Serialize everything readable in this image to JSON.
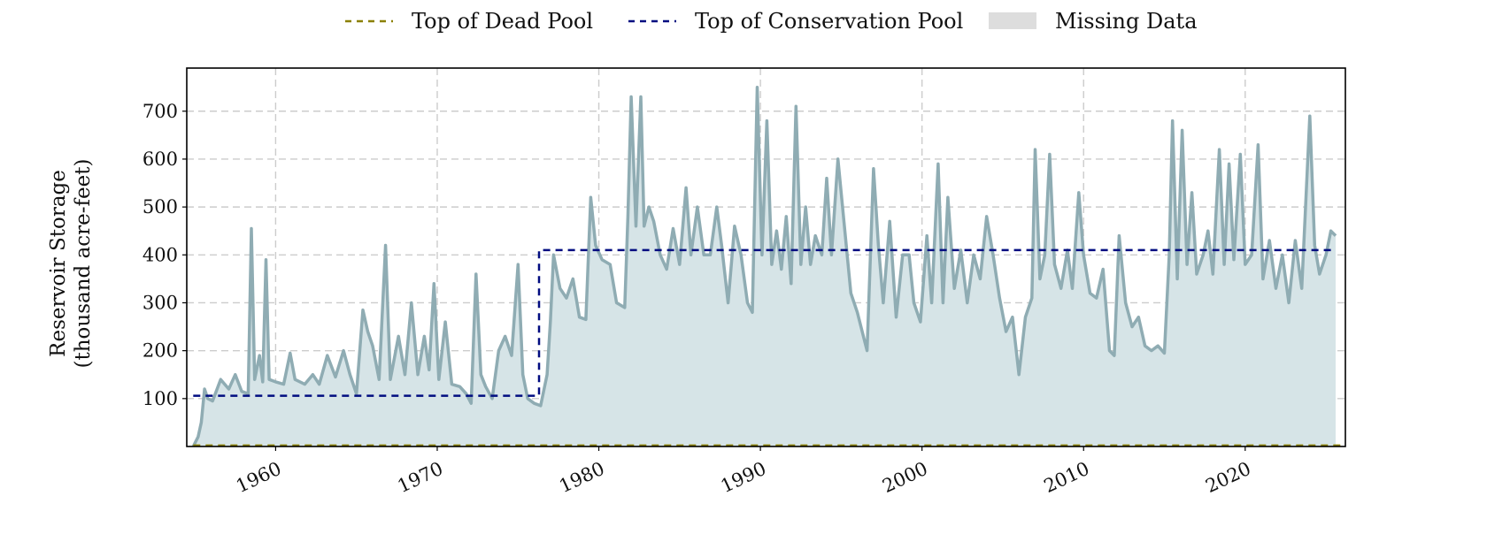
{
  "chart_data": {
    "type": "line",
    "xlabel": "",
    "ylabel": [
      "Reservoir Storage",
      "(thousand acre-feet)"
    ],
    "xlim": [
      1954.5,
      2026.2
    ],
    "ylim": [
      0,
      790
    ],
    "x_ticks": [
      1960,
      1970,
      1980,
      1990,
      2000,
      2010,
      2020
    ],
    "x_tick_labels": [
      "1960",
      "1970",
      "1980",
      "1990",
      "2000",
      "2010",
      "2020"
    ],
    "y_ticks": [
      100,
      200,
      300,
      400,
      500,
      600,
      700
    ],
    "y_tick_labels": [
      "100",
      "200",
      "300",
      "400",
      "500",
      "600",
      "700"
    ],
    "grid": true,
    "legend": {
      "placement": "top-center",
      "entries": [
        "Top of Dead Pool",
        "Top of Conservation Pool",
        "Missing Data"
      ]
    },
    "colors": {
      "storage_line": "#8facb3",
      "storage_fill": "#d6e4e7",
      "dead_pool": "#8b8000",
      "conservation_pool": "#000c80",
      "missing_data": "#dddddd",
      "grid": "#cccccc"
    },
    "series": [
      {
        "name": "Reservoir Storage",
        "points": [
          [
            1954.9,
            0
          ],
          [
            1955.2,
            20
          ],
          [
            1955.4,
            50
          ],
          [
            1955.6,
            120
          ],
          [
            1955.8,
            100
          ],
          [
            1956.1,
            95
          ],
          [
            1956.6,
            140
          ],
          [
            1957.1,
            120
          ],
          [
            1957.5,
            150
          ],
          [
            1957.9,
            115
          ],
          [
            1958.3,
            110
          ],
          [
            1958.5,
            455
          ],
          [
            1958.7,
            140
          ],
          [
            1959.0,
            190
          ],
          [
            1959.2,
            135
          ],
          [
            1959.4,
            390
          ],
          [
            1959.6,
            140
          ],
          [
            1960.0,
            135
          ],
          [
            1960.5,
            130
          ],
          [
            1960.9,
            195
          ],
          [
            1961.2,
            140
          ],
          [
            1961.8,
            130
          ],
          [
            1962.3,
            150
          ],
          [
            1962.7,
            130
          ],
          [
            1963.2,
            190
          ],
          [
            1963.7,
            145
          ],
          [
            1964.2,
            200
          ],
          [
            1964.6,
            150
          ],
          [
            1965.0,
            110
          ],
          [
            1965.4,
            285
          ],
          [
            1965.7,
            240
          ],
          [
            1966.0,
            210
          ],
          [
            1966.4,
            140
          ],
          [
            1966.8,
            420
          ],
          [
            1967.1,
            140
          ],
          [
            1967.6,
            230
          ],
          [
            1968.0,
            150
          ],
          [
            1968.4,
            300
          ],
          [
            1968.8,
            150
          ],
          [
            1969.2,
            230
          ],
          [
            1969.5,
            160
          ],
          [
            1969.8,
            340
          ],
          [
            1970.1,
            140
          ],
          [
            1970.5,
            260
          ],
          [
            1970.9,
            130
          ],
          [
            1971.4,
            125
          ],
          [
            1971.8,
            110
          ],
          [
            1972.1,
            90
          ],
          [
            1972.4,
            360
          ],
          [
            1972.7,
            150
          ],
          [
            1973.0,
            125
          ],
          [
            1973.4,
            100
          ],
          [
            1973.8,
            200
          ],
          [
            1974.2,
            230
          ],
          [
            1974.6,
            190
          ],
          [
            1975.0,
            380
          ],
          [
            1975.3,
            150
          ],
          [
            1975.6,
            100
          ],
          [
            1976.0,
            90
          ],
          [
            1976.4,
            85
          ],
          [
            1976.8,
            150
          ],
          [
            1977.0,
            260
          ],
          [
            1977.2,
            400
          ],
          [
            1977.6,
            330
          ],
          [
            1978.0,
            310
          ],
          [
            1978.4,
            350
          ],
          [
            1978.8,
            270
          ],
          [
            1979.2,
            265
          ],
          [
            1979.5,
            520
          ],
          [
            1979.8,
            420
          ],
          [
            1980.2,
            390
          ],
          [
            1980.7,
            380
          ],
          [
            1981.1,
            300
          ],
          [
            1981.6,
            290
          ],
          [
            1981.8,
            480
          ],
          [
            1982.0,
            730
          ],
          [
            1982.3,
            460
          ],
          [
            1982.6,
            730
          ],
          [
            1982.8,
            460
          ],
          [
            1983.1,
            500
          ],
          [
            1983.4,
            470
          ],
          [
            1983.8,
            400
          ],
          [
            1984.2,
            370
          ],
          [
            1984.6,
            455
          ],
          [
            1985.0,
            380
          ],
          [
            1985.4,
            540
          ],
          [
            1985.7,
            400
          ],
          [
            1986.1,
            500
          ],
          [
            1986.5,
            400
          ],
          [
            1986.9,
            400
          ],
          [
            1987.3,
            500
          ],
          [
            1987.6,
            420
          ],
          [
            1988.0,
            300
          ],
          [
            1988.4,
            460
          ],
          [
            1988.8,
            400
          ],
          [
            1989.2,
            300
          ],
          [
            1989.5,
            280
          ],
          [
            1989.8,
            750
          ],
          [
            1990.1,
            400
          ],
          [
            1990.4,
            680
          ],
          [
            1990.7,
            380
          ],
          [
            1991.0,
            450
          ],
          [
            1991.3,
            370
          ],
          [
            1991.6,
            480
          ],
          [
            1991.9,
            340
          ],
          [
            1992.2,
            710
          ],
          [
            1992.5,
            380
          ],
          [
            1992.8,
            500
          ],
          [
            1993.1,
            380
          ],
          [
            1993.4,
            440
          ],
          [
            1993.8,
            400
          ],
          [
            1994.1,
            560
          ],
          [
            1994.4,
            400
          ],
          [
            1994.8,
            600
          ],
          [
            1995.2,
            460
          ],
          [
            1995.6,
            320
          ],
          [
            1996.0,
            280
          ],
          [
            1996.3,
            240
          ],
          [
            1996.6,
            200
          ],
          [
            1997.0,
            580
          ],
          [
            1997.3,
            420
          ],
          [
            1997.6,
            300
          ],
          [
            1998.0,
            470
          ],
          [
            1998.4,
            270
          ],
          [
            1998.8,
            400
          ],
          [
            1999.2,
            400
          ],
          [
            1999.5,
            300
          ],
          [
            1999.9,
            260
          ],
          [
            2000.3,
            440
          ],
          [
            2000.6,
            300
          ],
          [
            2001.0,
            590
          ],
          [
            2001.3,
            300
          ],
          [
            2001.6,
            520
          ],
          [
            2002.0,
            330
          ],
          [
            2002.4,
            410
          ],
          [
            2002.8,
            300
          ],
          [
            2003.2,
            400
          ],
          [
            2003.6,
            350
          ],
          [
            2004.0,
            480
          ],
          [
            2004.4,
            400
          ],
          [
            2004.8,
            310
          ],
          [
            2005.2,
            240
          ],
          [
            2005.6,
            270
          ],
          [
            2006.0,
            150
          ],
          [
            2006.4,
            270
          ],
          [
            2006.8,
            310
          ],
          [
            2007.0,
            620
          ],
          [
            2007.3,
            350
          ],
          [
            2007.6,
            400
          ],
          [
            2007.9,
            610
          ],
          [
            2008.2,
            380
          ],
          [
            2008.6,
            330
          ],
          [
            2009.0,
            410
          ],
          [
            2009.3,
            330
          ],
          [
            2009.7,
            530
          ],
          [
            2010.0,
            400
          ],
          [
            2010.4,
            320
          ],
          [
            2010.8,
            310
          ],
          [
            2011.2,
            370
          ],
          [
            2011.6,
            200
          ],
          [
            2011.9,
            190
          ],
          [
            2012.2,
            440
          ],
          [
            2012.6,
            300
          ],
          [
            2013.0,
            250
          ],
          [
            2013.4,
            270
          ],
          [
            2013.8,
            210
          ],
          [
            2014.2,
            200
          ],
          [
            2014.6,
            210
          ],
          [
            2015.0,
            195
          ],
          [
            2015.3,
            400
          ],
          [
            2015.5,
            680
          ],
          [
            2015.8,
            350
          ],
          [
            2016.1,
            660
          ],
          [
            2016.4,
            380
          ],
          [
            2016.7,
            530
          ],
          [
            2017.0,
            360
          ],
          [
            2017.4,
            400
          ],
          [
            2017.7,
            450
          ],
          [
            2018.0,
            360
          ],
          [
            2018.4,
            620
          ],
          [
            2018.7,
            380
          ],
          [
            2019.0,
            590
          ],
          [
            2019.3,
            390
          ],
          [
            2019.7,
            610
          ],
          [
            2020.0,
            380
          ],
          [
            2020.4,
            400
          ],
          [
            2020.8,
            630
          ],
          [
            2021.1,
            350
          ],
          [
            2021.5,
            430
          ],
          [
            2021.9,
            330
          ],
          [
            2022.3,
            400
          ],
          [
            2022.7,
            300
          ],
          [
            2023.1,
            430
          ],
          [
            2023.5,
            330
          ],
          [
            2024.0,
            690
          ],
          [
            2024.3,
            420
          ],
          [
            2024.6,
            360
          ],
          [
            2025.0,
            400
          ],
          [
            2025.3,
            450
          ],
          [
            2025.6,
            440
          ]
        ]
      },
      {
        "name": "Top of Conservation Pool",
        "points": [
          [
            1954.9,
            106
          ],
          [
            1976.3,
            106
          ],
          [
            1976.3,
            410
          ],
          [
            2025.6,
            410
          ]
        ]
      },
      {
        "name": "Top of Dead Pool",
        "points": [
          [
            1954.9,
            2
          ],
          [
            2026.2,
            2
          ]
        ]
      }
    ]
  }
}
